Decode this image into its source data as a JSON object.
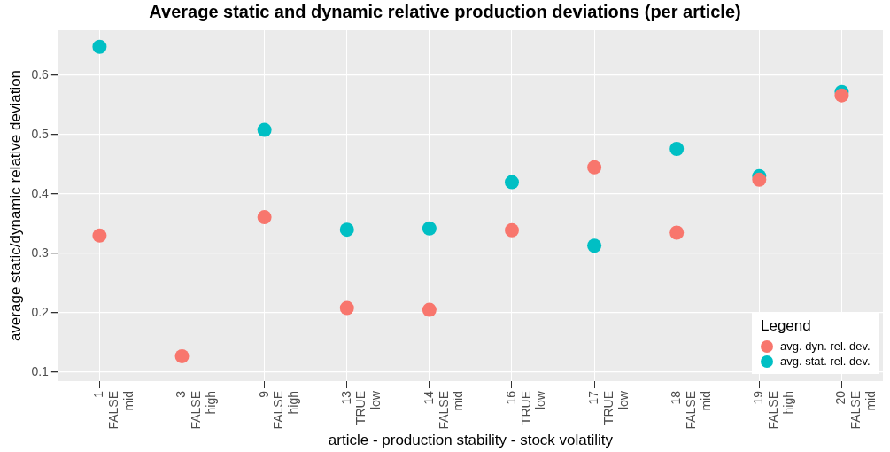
{
  "chart_data": {
    "type": "scatter",
    "title": "Average static and dynamic relative production deviations (per article)",
    "xlabel": "article - production stability - stock volatility",
    "ylabel": "average static/dynamic relative deviation",
    "legend_title": "Legend",
    "categories": [
      "1\nFALSE\nmid",
      "3\nFALSE\nhigh",
      "9\nFALSE\nhigh",
      "13\nTRUE\nlow",
      "14\nFALSE\nmid",
      "16\nTRUE\nlow",
      "17\nTRUE\nlow",
      "18\nFALSE\nmid",
      "19\nFALSE\nhigh",
      "20\nFALSE\nmid"
    ],
    "series": [
      {
        "name": "avg. dyn. rel. dev.",
        "color": "#f8766d",
        "values": [
          0.33,
          0.127,
          0.361,
          0.208,
          0.205,
          0.339,
          0.445,
          0.335,
          0.424,
          0.566
        ]
      },
      {
        "name": "avg. stat. rel. dev.",
        "color": "#00bfc4",
        "values": [
          0.648,
          null,
          0.508,
          0.34,
          0.342,
          0.42,
          0.313,
          0.476,
          0.43,
          0.572
        ]
      }
    ],
    "ylim": [
      0.085,
      0.676
    ],
    "yticks": [
      0.1,
      0.2,
      0.3,
      0.4,
      0.5,
      0.6
    ],
    "grid": true,
    "legend": "bottom right",
    "marker": "circle"
  }
}
